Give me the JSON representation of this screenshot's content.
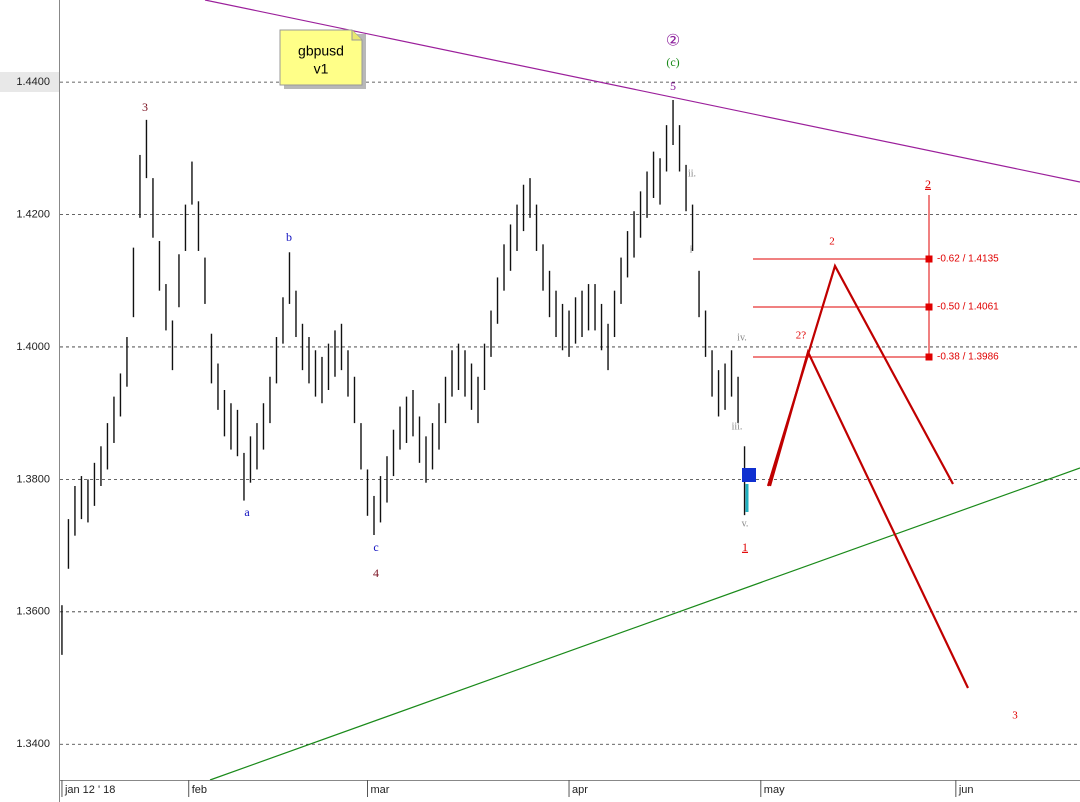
{
  "chart_data": {
    "type": "ohlc",
    "note": [
      "gbpusd",
      "v1"
    ],
    "x": [
      0,
      1,
      2,
      3,
      4,
      5,
      6,
      7,
      8,
      9,
      10,
      11,
      12,
      13,
      14,
      15,
      16,
      17,
      18,
      19,
      20,
      21,
      22,
      23,
      24,
      25,
      26,
      27,
      28,
      29,
      30,
      31,
      32,
      33,
      34,
      35,
      36,
      37,
      38,
      39,
      40,
      41,
      42,
      43,
      44,
      45,
      46,
      47,
      48,
      49,
      50,
      51,
      52,
      53,
      54,
      55,
      56,
      57,
      58,
      59,
      60,
      61,
      62,
      63,
      64,
      65,
      66,
      67,
      68,
      69,
      70,
      71,
      72,
      73,
      74,
      75,
      76,
      77,
      78,
      79,
      80,
      81,
      82,
      83,
      84,
      85,
      86,
      87,
      88,
      89,
      90,
      91,
      92,
      93,
      94,
      95,
      96,
      97,
      98,
      99,
      100,
      101,
      102,
      103,
      104,
      105
    ],
    "high": [
      1.361,
      1.374,
      1.379,
      1.3805,
      1.38,
      1.3825,
      1.385,
      1.3885,
      1.3925,
      1.396,
      1.4015,
      1.415,
      1.429,
      1.4343,
      1.4255,
      1.416,
      1.4095,
      1.404,
      1.414,
      1.4215,
      1.428,
      1.422,
      1.4135,
      1.402,
      1.3975,
      1.3935,
      1.3915,
      1.3905,
      1.384,
      1.3865,
      1.3885,
      1.3915,
      1.3955,
      1.4015,
      1.4075,
      1.4143,
      1.4085,
      1.4035,
      1.4015,
      1.3995,
      1.3985,
      1.4005,
      1.4025,
      1.4035,
      1.3995,
      1.3955,
      1.3885,
      1.3815,
      1.3775,
      1.3805,
      1.3835,
      1.3875,
      1.391,
      1.3925,
      1.3935,
      1.3895,
      1.3865,
      1.3885,
      1.3915,
      1.3955,
      1.3995,
      1.4005,
      1.3995,
      1.3975,
      1.3955,
      1.4005,
      1.4055,
      1.4105,
      1.4155,
      1.4185,
      1.4215,
      1.4245,
      1.4255,
      1.4215,
      1.4155,
      1.4115,
      1.4085,
      1.4065,
      1.4055,
      1.4075,
      1.4085,
      1.4095,
      1.4095,
      1.4065,
      1.4035,
      1.4085,
      1.4135,
      1.4175,
      1.4205,
      1.4235,
      1.4265,
      1.4295,
      1.4285,
      1.4335,
      1.4373,
      1.4335,
      1.4275,
      1.4215,
      1.4115,
      1.4055,
      1.3995,
      1.3965,
      1.3975,
      1.3995,
      1.3955,
      1.385
    ],
    "low": [
      1.3535,
      1.3665,
      1.3715,
      1.374,
      1.3735,
      1.376,
      1.379,
      1.3815,
      1.3855,
      1.3895,
      1.394,
      1.4045,
      1.4195,
      1.4255,
      1.4165,
      1.4085,
      1.4025,
      1.3965,
      1.406,
      1.4145,
      1.4215,
      1.4145,
      1.4065,
      1.3945,
      1.3905,
      1.3865,
      1.3845,
      1.3835,
      1.3768,
      1.3795,
      1.3815,
      1.3845,
      1.3885,
      1.3945,
      1.4005,
      1.4065,
      1.4015,
      1.3965,
      1.3945,
      1.3925,
      1.3915,
      1.3935,
      1.3955,
      1.3965,
      1.3925,
      1.3885,
      1.3815,
      1.3745,
      1.3716,
      1.3735,
      1.3765,
      1.3805,
      1.3845,
      1.3855,
      1.3865,
      1.3825,
      1.3795,
      1.3815,
      1.3845,
      1.3885,
      1.3925,
      1.3935,
      1.3925,
      1.3905,
      1.3885,
      1.3935,
      1.3985,
      1.4035,
      1.4085,
      1.4115,
      1.4145,
      1.4175,
      1.4195,
      1.4145,
      1.4085,
      1.4045,
      1.4015,
      1.3995,
      1.3985,
      1.4005,
      1.4015,
      1.4025,
      1.4025,
      1.3995,
      1.3965,
      1.4015,
      1.4065,
      1.4105,
      1.4135,
      1.4165,
      1.4195,
      1.4225,
      1.4215,
      1.4265,
      1.4305,
      1.4265,
      1.4205,
      1.4145,
      1.4045,
      1.3985,
      1.3925,
      1.3895,
      1.3905,
      1.3925,
      1.3885,
      1.3746
    ],
    "color": "#111111",
    "xlim": [
      -0.3,
      156.6
    ],
    "xticks": [
      {
        "value": 0,
        "label": "jan 12 ' 18"
      },
      {
        "value": 19.5,
        "label": "feb"
      },
      {
        "value": 47,
        "label": "mar"
      },
      {
        "value": 78,
        "label": "apr"
      },
      {
        "value": 107.5,
        "label": "may"
      },
      {
        "value": 137.5,
        "label": "jun"
      }
    ],
    "ylim": [
      1.3346,
      1.4524
    ],
    "yticks": [
      {
        "value": 1.34,
        "label": "1.3400"
      },
      {
        "value": 1.36,
        "label": "1.3600"
      },
      {
        "value": 1.38,
        "label": "1.3800"
      },
      {
        "value": 1.4,
        "label": "1.4000"
      },
      {
        "value": 1.42,
        "label": "1.4200"
      },
      {
        "value": 1.44,
        "label": "1.4400"
      }
    ],
    "grid": true,
    "wave_labels": [
      "3",
      "b",
      "a",
      "c",
      "4",
      "②",
      "(c)",
      "5",
      "ii.",
      "i",
      "iv.",
      "iii.",
      "v.",
      "1",
      "2",
      "2?",
      "2",
      "3"
    ],
    "fib_labels": [
      "-0.62 / 1.4135",
      "-0.50 / 1.4061",
      "-0.38 / 1.3986"
    ]
  }
}
